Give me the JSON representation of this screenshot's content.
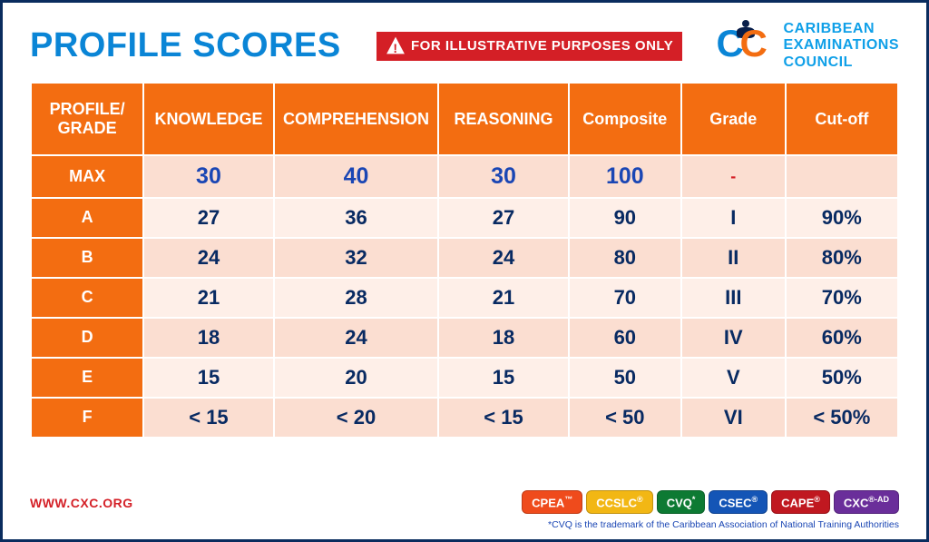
{
  "title": "PROFILE SCORES",
  "badge": "FOR ILLUSTRATIVE PURPOSES ONLY",
  "brand": {
    "line1": "CARIBBEAN",
    "line2": "EXAMINATIONS",
    "line3": "COUNCIL"
  },
  "table": {
    "headers": {
      "profile": "PROFILE/ GRADE",
      "knowledge": "KNOWLEDGE",
      "comprehension": "COMPREHENSION",
      "reasoning": "REASONING",
      "composite": "Composite",
      "grade": "Grade",
      "cutoff": "Cut-off"
    },
    "rows": [
      {
        "label": "MAX",
        "knowledge": "30",
        "comprehension": "40",
        "reasoning": "30",
        "composite": "100",
        "grade": "-",
        "cutoff": "",
        "row_style": "pink",
        "is_max": true
      },
      {
        "label": "A",
        "knowledge": "27",
        "comprehension": "36",
        "reasoning": "27",
        "composite": "90",
        "grade": "I",
        "cutoff": "90%",
        "row_style": "light",
        "is_max": false
      },
      {
        "label": "B",
        "knowledge": "24",
        "comprehension": "32",
        "reasoning": "24",
        "composite": "80",
        "grade": "II",
        "cutoff": "80%",
        "row_style": "pink",
        "is_max": false
      },
      {
        "label": "C",
        "knowledge": "21",
        "comprehension": "28",
        "reasoning": "21",
        "composite": "70",
        "grade": "III",
        "cutoff": "70%",
        "row_style": "light",
        "is_max": false
      },
      {
        "label": "D",
        "knowledge": "18",
        "comprehension": "24",
        "reasoning": "18",
        "composite": "60",
        "grade": "IV",
        "cutoff": "60%",
        "row_style": "pink",
        "is_max": false
      },
      {
        "label": "E",
        "knowledge": "15",
        "comprehension": "20",
        "reasoning": "15",
        "composite": "50",
        "grade": "V",
        "cutoff": "50%",
        "row_style": "light",
        "is_max": false
      },
      {
        "label": "F",
        "knowledge": "< 15",
        "comprehension": "< 20",
        "reasoning": "< 15",
        "composite": "< 50",
        "grade": "VI",
        "cutoff": "< 50%",
        "row_style": "pink",
        "is_max": false
      }
    ]
  },
  "footer": {
    "url": "WWW.CXC.ORG",
    "pills": [
      {
        "label": "CPEA",
        "mark": "™",
        "bg": "#ef4b1c"
      },
      {
        "label": "CCSLC",
        "mark": "®",
        "bg": "#f2b714"
      },
      {
        "label": "CVQ",
        "mark": "*",
        "bg": "#0d7a33"
      },
      {
        "label": "CSEC",
        "mark": "®",
        "bg": "#1455b6"
      },
      {
        "label": "CAPE",
        "mark": "®",
        "bg": "#c01820"
      },
      {
        "label": "CXC",
        "mark": "®-AD",
        "bg": "#6a2e9a"
      }
    ],
    "trademark": "*CVQ is the trademark of the Caribbean Association of National Training Authorities"
  },
  "colors": {
    "header_bg": "#f36d11",
    "header_text": "#ffffff",
    "row_pink": "#fbded1",
    "row_light": "#feefe8",
    "cell_text": "#082a62",
    "max_text": "#1a46b4",
    "title_text": "#0a85d6",
    "border": "#ffffff",
    "page_border": "#0a2c5e",
    "badge_red": "#d41f26"
  }
}
